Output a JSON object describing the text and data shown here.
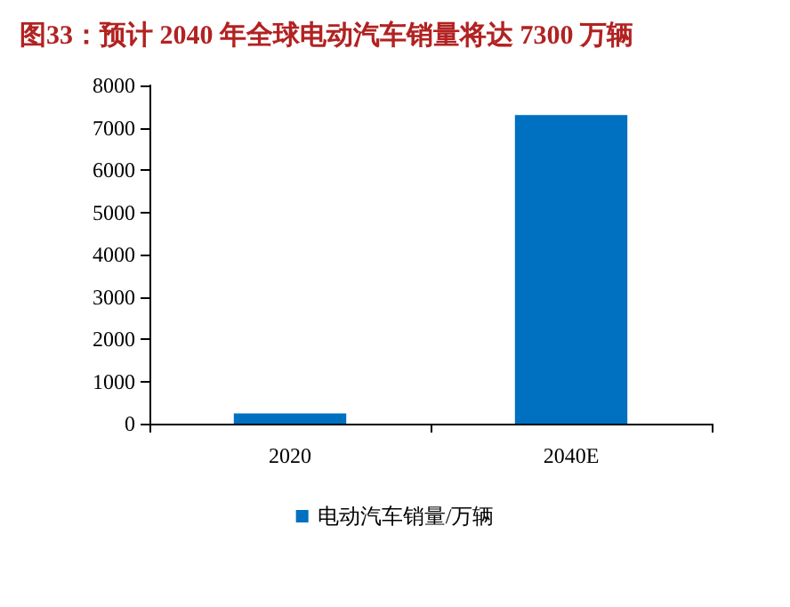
{
  "chart_data": {
    "type": "bar",
    "title": "图33：预计 2040 年全球电动汽车销量将达 7300 万辆",
    "categories": [
      "2020",
      "2040E"
    ],
    "series": [
      {
        "name": "电动汽车销量/万辆",
        "color": "#0070c0",
        "values": [
          240,
          7300
        ]
      }
    ],
    "ylim": [
      0,
      8000
    ],
    "yticks": [
      0,
      1000,
      2000,
      3000,
      4000,
      5000,
      6000,
      7000,
      8000
    ],
    "grid": false,
    "legend": "bottom"
  }
}
